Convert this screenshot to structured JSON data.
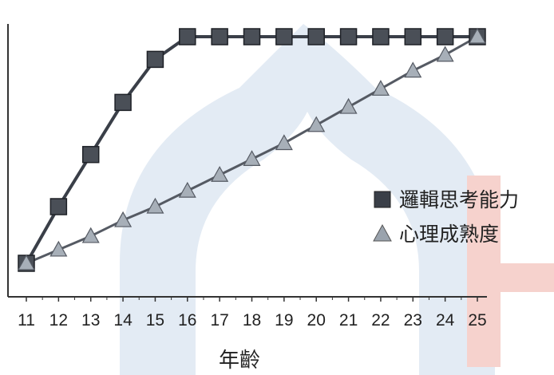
{
  "chart_data": {
    "type": "line",
    "title": "",
    "xlabel": "年齡",
    "ylabel": "",
    "x": [
      11,
      12,
      13,
      14,
      15,
      16,
      17,
      18,
      19,
      20,
      21,
      22,
      23,
      24,
      25
    ],
    "ylim": [
      0,
      1
    ],
    "grid": false,
    "legend_position": "right",
    "series": [
      {
        "name": "邏輯思考能力",
        "marker": "square",
        "color": "#3a3f48",
        "values": [
          0,
          0.25,
          0.48,
          0.71,
          0.9,
          1.0,
          1.0,
          1.0,
          1.0,
          1.0,
          1.0,
          1.0,
          1.0,
          1.0,
          1.0
        ]
      },
      {
        "name": "心理成熟度",
        "marker": "triangle",
        "color": "#555a63",
        "values": [
          0,
          0.06,
          0.12,
          0.19,
          0.25,
          0.32,
          0.39,
          0.46,
          0.53,
          0.61,
          0.69,
          0.77,
          0.85,
          0.92,
          1.0
        ]
      }
    ]
  },
  "watermark": {
    "colors": [
      "#d6e2ee",
      "#f3c8c3"
    ]
  }
}
